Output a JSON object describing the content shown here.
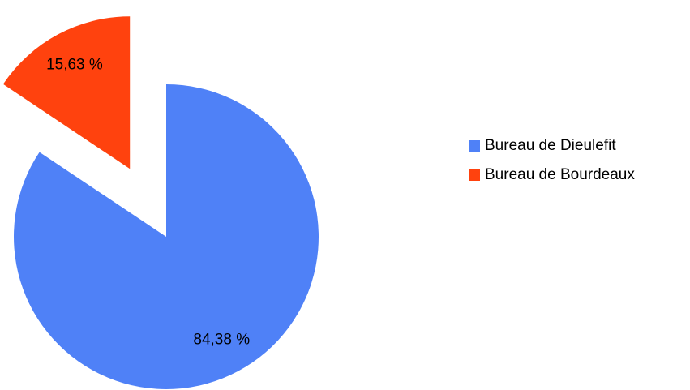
{
  "chart_data": {
    "type": "pie",
    "categories": [
      "Bureau de Dieulefit",
      "Bureau de Bourdeaux"
    ],
    "values": [
      84.38,
      15.63
    ],
    "value_labels": [
      "84,38 %",
      "15,63 %"
    ],
    "colors": [
      "#4f81f7",
      "#ff420e"
    ],
    "legend": "right"
  }
}
